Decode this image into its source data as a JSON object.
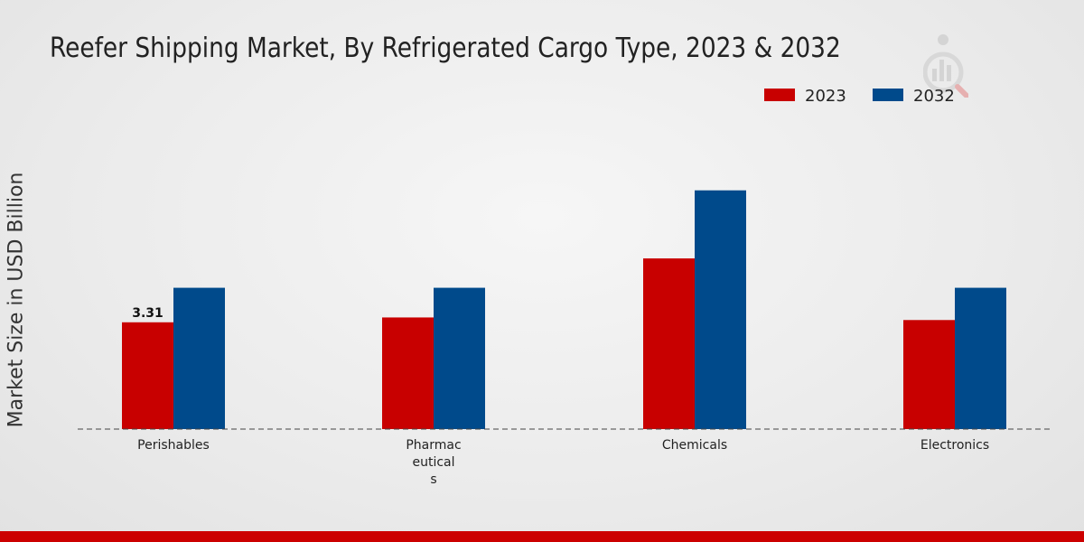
{
  "colors": {
    "series_2023": "#c80000",
    "series_2032": "#004a8b",
    "bottom_bar": "#cc0000",
    "baseline": "#444444"
  },
  "logo": {
    "icon": "brand-watermark-icon"
  },
  "chart_data": {
    "type": "bar",
    "title": "Reefer Shipping Market, By Refrigerated Cargo Type, 2023 & 2032",
    "xlabel": "",
    "ylabel": "Market Size in USD Billion",
    "categories": [
      "Perishables",
      "Pharmaceuticals",
      "Chemicals",
      "Electronics"
    ],
    "category_label_lines": [
      [
        "Perishables"
      ],
      [
        "Pharmac",
        "eutical",
        "s"
      ],
      [
        "Chemicals"
      ],
      [
        "Electronics"
      ]
    ],
    "series": [
      {
        "name": "2023",
        "values": [
          3.31,
          3.46,
          5.29,
          3.38
        ]
      },
      {
        "name": "2032",
        "values": [
          4.38,
          4.38,
          7.4,
          4.38
        ]
      }
    ],
    "data_labels": [
      {
        "series": 0,
        "category": 0,
        "text": "3.31"
      }
    ],
    "ylim": [
      0,
      10.5
    ],
    "grid": false,
    "legend": "top-right"
  }
}
